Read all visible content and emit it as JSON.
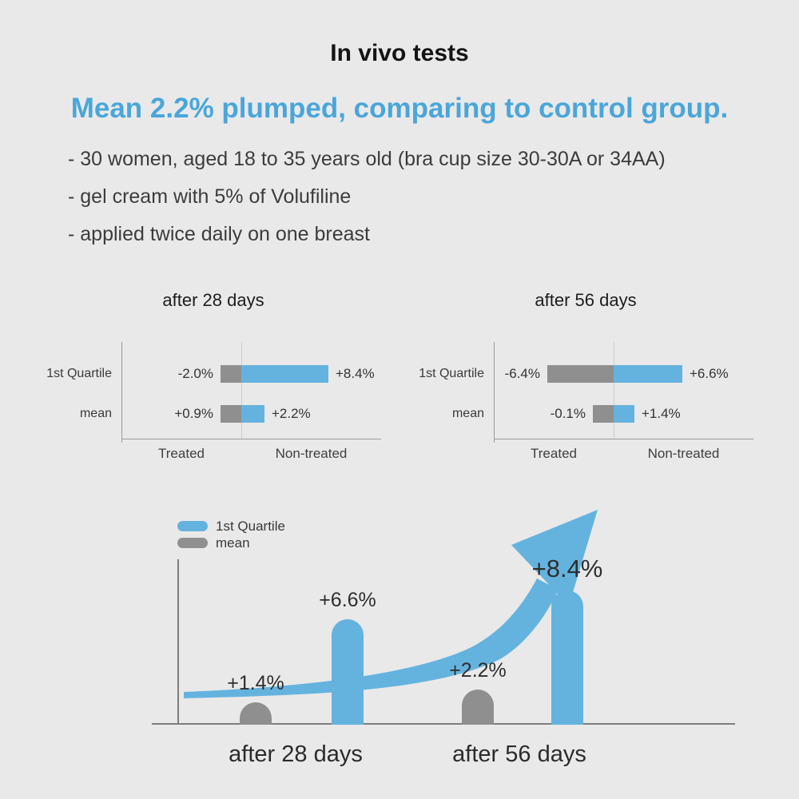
{
  "page": {
    "title": "In vivo tests",
    "subtitle": "Mean 2.2% plumped, comparing to control group.",
    "bullets": [
      "- 30 women, aged 18 to 35 years old (bra cup size 30-30A or 34AA)",
      "- gel cream with 5% of Volufiline",
      "- applied twice daily on one breast"
    ]
  },
  "colors": {
    "bg": "#e9e9e9",
    "blue": "#64b3df",
    "blue-text": "#4aa6da",
    "gray": "#8f8f8f",
    "title": "#141414",
    "body": "#3c3c3c",
    "axis": "#9a9a9a"
  },
  "chart_data": [
    {
      "type": "bar",
      "orientation": "horizontal",
      "title": "after 28 days",
      "categories": [
        "1st Quartile",
        "mean"
      ],
      "series": [
        {
          "name": "Treated",
          "color": "#8f8f8f",
          "values": [
            -2.0,
            0.9
          ],
          "labels": [
            "-2.0%",
            "+0.9%"
          ]
        },
        {
          "name": "Non-treated",
          "color": "#64b3df",
          "values": [
            8.4,
            2.2
          ],
          "labels": [
            "+8.4%",
            "+2.2%"
          ]
        }
      ],
      "x_group_labels": [
        "Treated",
        "Non-treated"
      ],
      "unit": "%"
    },
    {
      "type": "bar",
      "orientation": "horizontal",
      "title": "after 56 days",
      "categories": [
        "1st Quartile",
        "mean"
      ],
      "series": [
        {
          "name": "Treated",
          "color": "#8f8f8f",
          "values": [
            -6.4,
            -0.1
          ],
          "labels": [
            "-6.4%",
            "-0.1%"
          ]
        },
        {
          "name": "Non-treated",
          "color": "#64b3df",
          "values": [
            6.6,
            1.4
          ],
          "labels": [
            "+6.6%",
            "+1.4%"
          ]
        }
      ],
      "x_group_labels": [
        "Treated",
        "Non-treated"
      ],
      "unit": "%"
    },
    {
      "type": "bar",
      "orientation": "vertical",
      "title": "",
      "legend": [
        {
          "label": "1st Quartile",
          "color": "#64b3df"
        },
        {
          "label": "mean",
          "color": "#8f8f8f"
        }
      ],
      "groups": [
        "after 28 days",
        "after 56 days"
      ],
      "bars": [
        {
          "group": "after 28 days",
          "series": "mean",
          "value": 1.4,
          "label": "+1.4%",
          "color": "#8f8f8f"
        },
        {
          "group": "after 28 days",
          "series": "1st Quartile",
          "value": 6.6,
          "label": "+6.6%",
          "color": "#64b3df"
        },
        {
          "group": "after 56 days",
          "series": "mean",
          "value": 2.2,
          "label": "+2.2%",
          "color": "#8f8f8f"
        },
        {
          "group": "after 56 days",
          "series": "1st Quartile",
          "value": 8.4,
          "label": "+8.4%",
          "color": "#64b3df"
        }
      ],
      "annotation": "upward-growth-arrow",
      "unit": "%"
    }
  ]
}
